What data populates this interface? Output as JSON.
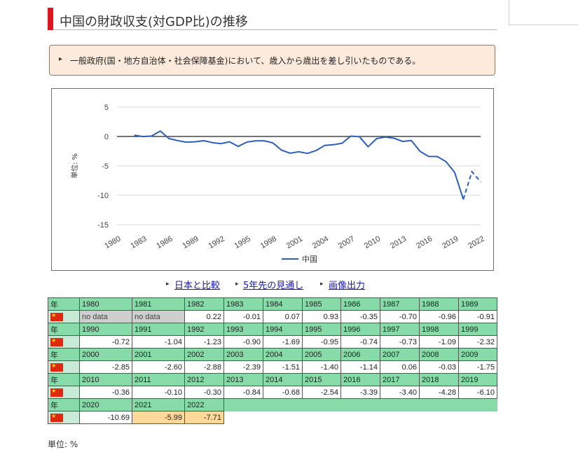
{
  "page": {
    "title": "中国の財政収支(対GDP比)の推移",
    "note": "一般政府(国・地方自治体・社会保障基金)において、歳入から歳出を差し引いたものである。",
    "links": [
      "日本と比較",
      "5年先の見通し",
      "画像出力"
    ],
    "unit_note": "単位: %"
  },
  "colors": {
    "accent": "#e0151f",
    "line": "#2d5fbf",
    "table_header": "#86dba8",
    "estimate_cell": "#ffd99a",
    "nodata_cell": "#cfcfcf",
    "note_bg": "#fcebdc"
  },
  "chart_data": {
    "type": "line",
    "ylabel": "単位: %",
    "xlabel": "",
    "ylim": [
      -15,
      5
    ],
    "yticks": [
      5,
      0,
      -5,
      -10,
      -15
    ],
    "xticks": [
      1980,
      1983,
      1986,
      1989,
      1992,
      1995,
      1998,
      2001,
      2004,
      2007,
      2010,
      2013,
      2016,
      2019,
      2022
    ],
    "xlim": [
      1980,
      2022
    ],
    "grid": true,
    "legend_position": "bottom",
    "estimate_from": 2021,
    "series": [
      {
        "name": "中国",
        "x": [
          1982,
          1983,
          1984,
          1985,
          1986,
          1987,
          1988,
          1989,
          1990,
          1991,
          1992,
          1993,
          1994,
          1995,
          1996,
          1997,
          1998,
          1999,
          2000,
          2001,
          2002,
          2003,
          2004,
          2005,
          2006,
          2007,
          2008,
          2009,
          2010,
          2011,
          2012,
          2013,
          2014,
          2015,
          2016,
          2017,
          2018,
          2019,
          2020,
          2021,
          2022
        ],
        "values": [
          0.22,
          -0.01,
          0.07,
          0.93,
          -0.35,
          -0.7,
          -0.96,
          -0.91,
          -0.72,
          -1.04,
          -1.23,
          -0.9,
          -1.69,
          -0.95,
          -0.74,
          -0.73,
          -1.09,
          -2.32,
          -2.85,
          -2.6,
          -2.88,
          -2.39,
          -1.51,
          -1.4,
          -1.14,
          0.06,
          -0.03,
          -1.75,
          -0.36,
          -0.1,
          -0.3,
          -0.84,
          -0.68,
          -2.54,
          -3.39,
          -3.4,
          -4.28,
          -6.1,
          -10.69,
          -5.99,
          -7.71
        ]
      }
    ]
  },
  "table": {
    "year_label": "年",
    "nodata_text": "no data",
    "rows": [
      {
        "years": [
          "1980",
          "1981",
          "1982",
          "1983",
          "1984",
          "1985",
          "1986",
          "1987",
          "1988",
          "1989"
        ],
        "values": [
          "no data",
          "no data",
          "0.22",
          "-0.01",
          "0.07",
          "0.93",
          "-0.35",
          "-0.70",
          "-0.96",
          "-0.91"
        ]
      },
      {
        "years": [
          "1990",
          "1991",
          "1992",
          "1993",
          "1994",
          "1995",
          "1996",
          "1997",
          "1998",
          "1999"
        ],
        "values": [
          "-0.72",
          "-1.04",
          "-1.23",
          "-0.90",
          "-1.69",
          "-0.95",
          "-0.74",
          "-0.73",
          "-1.09",
          "-2.32"
        ]
      },
      {
        "years": [
          "2000",
          "2001",
          "2002",
          "2003",
          "2004",
          "2005",
          "2006",
          "2007",
          "2008",
          "2009"
        ],
        "values": [
          "-2.85",
          "-2.60",
          "-2.88",
          "-2.39",
          "-1.51",
          "-1.40",
          "-1.14",
          "0.06",
          "-0.03",
          "-1.75"
        ]
      },
      {
        "years": [
          "2010",
          "2011",
          "2012",
          "2013",
          "2014",
          "2015",
          "2016",
          "2017",
          "2018",
          "2019"
        ],
        "values": [
          "-0.36",
          "-0.10",
          "-0.30",
          "-0.84",
          "-0.68",
          "-2.54",
          "-3.39",
          "-3.40",
          "-4.28",
          "-6.10"
        ]
      },
      {
        "years": [
          "2020",
          "2021",
          "2022"
        ],
        "values": [
          "-10.69",
          "-5.99",
          "-7.71"
        ],
        "estimate_years": [
          "2021",
          "2022"
        ]
      }
    ]
  }
}
